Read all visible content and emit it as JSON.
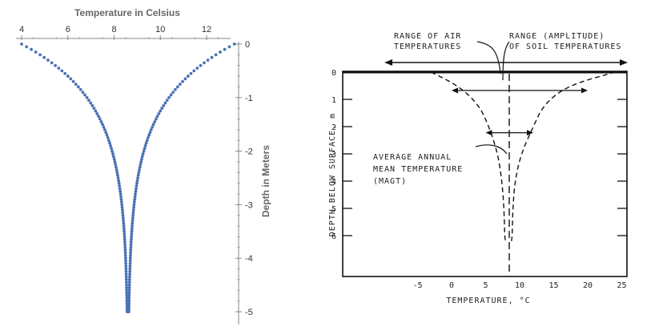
{
  "chart_data": [
    {
      "type": "scatter",
      "title": "",
      "xlabel": "Temperature in Celsius",
      "ylabel": "Depth in Meters",
      "xlim": [
        3.8,
        13.6
      ],
      "ylim": [
        -5.1,
        0.1
      ],
      "x_ticks": [
        "4",
        "6",
        "8",
        "10",
        "12"
      ],
      "x_tick_values": [
        4,
        6,
        8,
        10,
        12
      ],
      "y_ticks": [
        "0",
        "-1",
        "-2",
        "-3",
        "-4",
        "-5"
      ],
      "y_tick_values": [
        0,
        -1,
        -2,
        -3,
        -4,
        -5
      ],
      "x_axis_position": "top",
      "y_axis_position": "right",
      "grid": false,
      "marker_color": "#4a72b5",
      "series": [
        {
          "note": "",
          "profile": {
            "mean": 8.6,
            "surface_amplitude": 4.6,
            "damping_depth_m": 1.05,
            "depth_start": 0,
            "depth_end": -5,
            "depth_step": 0.05
          },
          "points": [
            [
              4.0,
              0.0
            ],
            [
              4.29,
              -0.05
            ],
            [
              4.58,
              -0.1
            ],
            [
              4.85,
              -0.15
            ],
            [
              5.11,
              -0.2
            ],
            [
              5.35,
              -0.25
            ],
            [
              5.58,
              -0.3
            ],
            [
              5.8,
              -0.35
            ],
            [
              6.01,
              -0.4
            ],
            [
              6.2,
              -0.45
            ],
            [
              6.39,
              -0.5
            ],
            [
              6.56,
              -0.55
            ],
            [
              6.73,
              -0.6
            ],
            [
              6.88,
              -0.65
            ],
            [
              7.03,
              -0.7
            ],
            [
              7.17,
              -0.75
            ],
            [
              7.3,
              -0.8
            ],
            [
              7.42,
              -0.85
            ],
            [
              7.53,
              -0.9
            ],
            [
              7.64,
              -0.95
            ],
            [
              7.74,
              -1.0
            ],
            [
              7.84,
              -1.1
            ],
            [
              7.96,
              -1.2
            ],
            [
              8.07,
              -1.35
            ],
            [
              8.17,
              -1.5
            ],
            [
              8.26,
              -1.7
            ],
            [
              8.34,
              -2.0
            ],
            [
              8.42,
              -2.3
            ],
            [
              8.48,
              -2.7
            ],
            [
              8.53,
              -3.2
            ],
            [
              8.56,
              -3.7
            ],
            [
              8.58,
              -4.2
            ],
            [
              8.59,
              -4.6
            ],
            [
              8.6,
              -5.0
            ],
            [
              13.2,
              0.0
            ],
            [
              12.91,
              -0.05
            ],
            [
              12.62,
              -0.1
            ],
            [
              12.35,
              -0.15
            ],
            [
              12.09,
              -0.2
            ],
            [
              11.85,
              -0.25
            ],
            [
              11.62,
              -0.3
            ],
            [
              11.4,
              -0.35
            ],
            [
              11.19,
              -0.4
            ],
            [
              11.0,
              -0.45
            ],
            [
              10.81,
              -0.5
            ],
            [
              10.64,
              -0.55
            ],
            [
              10.47,
              -0.6
            ],
            [
              10.32,
              -0.65
            ],
            [
              10.17,
              -0.7
            ],
            [
              10.03,
              -0.75
            ],
            [
              9.9,
              -0.8
            ],
            [
              9.78,
              -0.85
            ],
            [
              9.67,
              -0.9
            ],
            [
              9.56,
              -0.95
            ],
            [
              9.46,
              -1.0
            ],
            [
              9.36,
              -1.1
            ],
            [
              9.24,
              -1.2
            ],
            [
              9.13,
              -1.35
            ],
            [
              9.03,
              -1.5
            ],
            [
              8.94,
              -1.7
            ],
            [
              8.86,
              -2.0
            ],
            [
              8.78,
              -2.3
            ],
            [
              8.72,
              -2.7
            ],
            [
              8.67,
              -3.2
            ],
            [
              8.64,
              -3.7
            ],
            [
              8.62,
              -4.2
            ],
            [
              8.61,
              -4.6
            ],
            [
              8.6,
              -5.0
            ]
          ]
        }
      ]
    },
    {
      "type": "line",
      "title": "",
      "xlabel": "TEMPERATURE, °C",
      "ylabel": "DEPTH BELOW SURFACE, m",
      "xlim": [
        -15,
        27
      ],
      "ylim": [
        7.5,
        0
      ],
      "x_ticks": [
        "-5",
        "0",
        "5",
        "10",
        "15",
        "20",
        "25"
      ],
      "x_tick_values": [
        -5,
        0,
        5,
        10,
        15,
        20,
        25
      ],
      "y_ticks": [
        "0",
        "1",
        "2",
        "3",
        "4",
        "5",
        "6"
      ],
      "y_tick_values": [
        0,
        1,
        2,
        3,
        4,
        5,
        6
      ],
      "grid": false,
      "mean_temperature_c": 8.3,
      "annotations": [
        "RANGE OF AIR",
        "TEMPERATURES",
        "RANGE (AMPLITUDE)",
        "OF SOIL TEMPERATURES",
        "AVERAGE ANNUAL",
        "MEAN TEMPERATURE",
        "(MAGT)"
      ],
      "series": [
        {
          "role": "minimum envelope",
          "points": [
            [
              -3,
              0
            ],
            [
              1,
              0.5
            ],
            [
              4,
              1.2
            ],
            [
              5.5,
              2
            ],
            [
              6.8,
              3
            ],
            [
              7.4,
              4
            ],
            [
              7.7,
              5
            ],
            [
              7.8,
              6
            ],
            [
              7.9,
              6.2
            ]
          ]
        },
        {
          "role": "maximum envelope",
          "points": [
            [
              24,
              0
            ],
            [
              17,
              0.5
            ],
            [
              13.5,
              1.2
            ],
            [
              12,
              2
            ],
            [
              10.2,
              3
            ],
            [
              9.3,
              4
            ],
            [
              9,
              5
            ],
            [
              8.9,
              6
            ],
            [
              8.8,
              6.2
            ]
          ]
        }
      ],
      "ranges": [
        {
          "depth": 0.35,
          "from": 0,
          "to": 20
        },
        {
          "depth": 1.9,
          "from": 5,
          "to": 12
        }
      ],
      "air_range": {
        "depth": -0.4,
        "from": -15,
        "to": 27
      }
    }
  ]
}
